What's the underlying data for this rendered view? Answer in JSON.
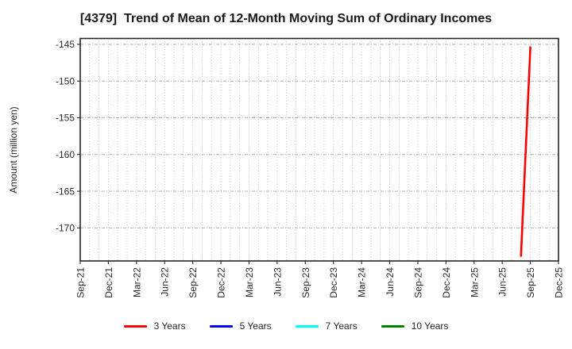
{
  "chart_data": {
    "type": "line",
    "title": "[4379]  Trend of Mean of 12-Month Moving Sum of Ordinary Incomes",
    "ylabel": "Amount (million yen)",
    "grid": true,
    "legend_position": "bottom",
    "x_axis": {
      "months_total": 51,
      "tick_every_months": 3,
      "minor_grid": "monthly",
      "tick_labels": [
        "Sep-21",
        "Dec-21",
        "Mar-22",
        "Jun-22",
        "Sep-22",
        "Dec-22",
        "Mar-23",
        "Jun-23",
        "Sep-23",
        "Dec-23",
        "Mar-24",
        "Jun-24",
        "Sep-24",
        "Dec-24",
        "Mar-25",
        "Jun-25",
        "Sep-25",
        "Dec-25"
      ]
    },
    "y_axis": {
      "label": "Amount (million yen)",
      "ticks": [
        -145,
        -150,
        -155,
        -160,
        -165,
        -170
      ],
      "lim": [
        -174.5,
        -144.2
      ]
    },
    "series": [
      {
        "name": "3 Years",
        "color": "#ff0000",
        "points": [
          {
            "month": "Aug-25",
            "month_index": 47,
            "value": -173.8
          },
          {
            "month": "Sep-25",
            "month_index": 48,
            "value": -145.4
          }
        ]
      },
      {
        "name": "5 Years",
        "color": "#0000ff",
        "points": []
      },
      {
        "name": "7 Years",
        "color": "#00ffff",
        "points": []
      },
      {
        "name": "10 Years",
        "color": "#008000",
        "points": []
      }
    ]
  }
}
